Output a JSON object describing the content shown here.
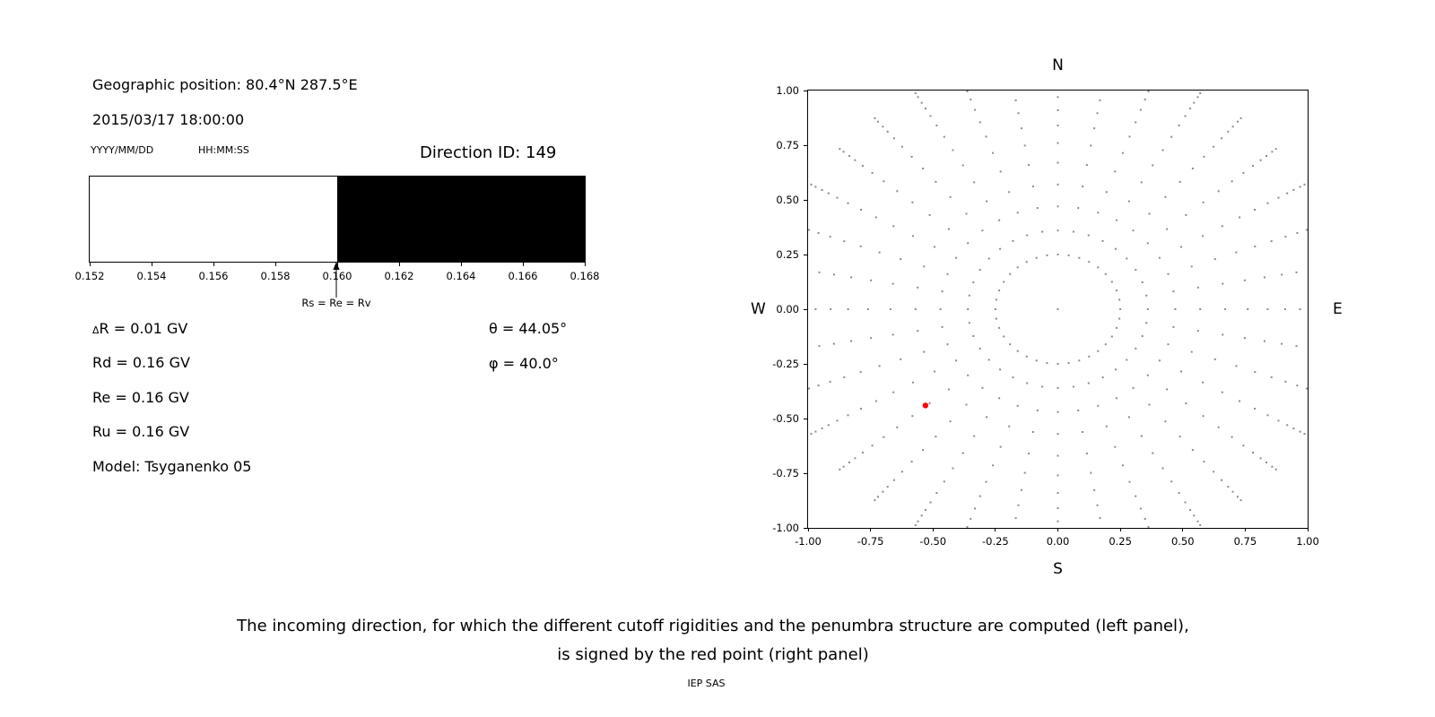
{
  "info": {
    "geo_position": "Geographic position: 80.4°N 287.5°E",
    "datetime": "2015/03/17 18:00:00",
    "date_format_label": "YYYY/MM/DD",
    "time_format_label": "HH:MM:SS",
    "delta_r_symbol": "Δ",
    "delta_r_rest": "R = 0.01 GV",
    "rd": "Rd = 0.16 GV",
    "re": "Re = 0.16 GV",
    "ru": "Ru = 0.16 GV",
    "model": "Model: Tsyganenko 05",
    "theta": "θ = 44.05°",
    "phi": "φ = 40.0°"
  },
  "caption": {
    "line1": "The incoming direction, for which the different cutoff rigidities and the penumbra structure are computed (left panel),",
    "line2": "is signed by the red point (right panel)",
    "credit": "IEP SAS"
  },
  "chart_data": [
    {
      "type": "bar",
      "title": "Direction ID: 149",
      "xlabel": "",
      "ylabel": "",
      "x_range": [
        0.152,
        0.168
      ],
      "x_tick_labels": [
        "0.152",
        "0.154",
        "0.156",
        "0.158",
        "0.160",
        "0.162",
        "0.164",
        "0.166",
        "0.168"
      ],
      "segments": [
        {
          "from": 0.152,
          "to": 0.16,
          "color": "#ffffff"
        },
        {
          "from": 0.16,
          "to": 0.168,
          "color": "#000000"
        }
      ],
      "annotation": {
        "x": 0.16,
        "label": "Rs = Re = Rv"
      },
      "values": {
        "Rs_GV": 0.16,
        "Re_GV": 0.16,
        "Rv_GV": 0.16,
        "Rd_GV": 0.16,
        "Ru_GV": 0.16,
        "deltaR_GV": 0.01
      }
    },
    {
      "type": "scatter",
      "xlim": [
        -1.0,
        1.0
      ],
      "ylim": [
        -1.0,
        1.0
      ],
      "grid": false,
      "x_tick_labels": [
        "-1.00",
        "-0.75",
        "-0.50",
        "-0.25",
        "0.00",
        "0.25",
        "0.50",
        "0.75",
        "1.00"
      ],
      "y_tick_labels": [
        "-1.00",
        "-0.75",
        "-0.50",
        "-0.25",
        "0.00",
        "0.25",
        "0.50",
        "0.75",
        "1.00"
      ],
      "compass": {
        "north": "N",
        "south": "S",
        "west": "W",
        "east": "E"
      },
      "grid_points": {
        "description": "radial lattice of gray dots: 36 azimuth rays every 10 degrees, dots at listed radii, plus a center dot; dots clipped at the axes box",
        "azimuth_start_deg": 0,
        "azimuth_step_deg": 10,
        "azimuth_count": 36,
        "radii": [
          0.25,
          0.36,
          0.47,
          0.57,
          0.67,
          0.76,
          0.84,
          0.91,
          0.97,
          1.02,
          1.06,
          1.09,
          1.12,
          1.14
        ],
        "center": [
          0,
          0
        ],
        "color": "#8c8c8c"
      },
      "red_point": {
        "x": -0.53,
        "y": -0.44,
        "color": "#ff0000"
      }
    }
  ]
}
